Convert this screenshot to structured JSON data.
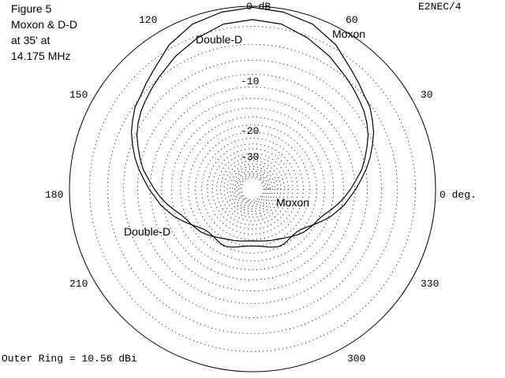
{
  "chart_data": {
    "type": "polar",
    "caption": [
      "Figure 5",
      "Moxon & D-D",
      "at 35' at",
      "14.175 MHz"
    ],
    "program_label": "E2NEC/4",
    "outer_ring_label": "Outer Ring = 10.56 dBi",
    "outer_ring_dbi": 10.56,
    "ring_labels": [
      {
        "db": 0,
        "text": "0 dB"
      },
      {
        "db": -10,
        "text": "-10"
      },
      {
        "db": -20,
        "text": "-20"
      },
      {
        "db": -30,
        "text": "-30"
      }
    ],
    "angle_labels": [
      {
        "deg": 0,
        "text": "0 deg."
      },
      {
        "deg": 30,
        "text": "30"
      },
      {
        "deg": 60,
        "text": "60"
      },
      {
        "deg": 120,
        "text": "120"
      },
      {
        "deg": 150,
        "text": "150"
      },
      {
        "deg": 180,
        "text": "180"
      },
      {
        "deg": 210,
        "text": "210"
      },
      {
        "deg": 300,
        "text": "300"
      },
      {
        "deg": 330,
        "text": "330"
      }
    ],
    "series": [
      {
        "name": "Moxon",
        "unit": "dB below outer ring",
        "points": [
          [
            90,
            -0.1
          ],
          [
            80,
            -0.3
          ],
          [
            70,
            -0.7
          ],
          [
            60,
            -1.6
          ],
          [
            50,
            -2.9
          ],
          [
            45,
            -3.4
          ],
          [
            40,
            -3.9
          ],
          [
            35,
            -4.2
          ],
          [
            30,
            -4.8
          ],
          [
            25,
            -5.4
          ],
          [
            20,
            -6.2
          ],
          [
            15,
            -7.0
          ],
          [
            10,
            -7.9
          ],
          [
            5,
            -8.9
          ],
          [
            0,
            -9.8
          ],
          [
            -5,
            -10.8
          ],
          [
            -10,
            -11.6
          ],
          [
            -15,
            -12.7
          ],
          [
            -20,
            -13.7
          ],
          [
            -25,
            -15.0
          ],
          [
            -30,
            -16.2
          ],
          [
            -35,
            -17.4
          ],
          [
            -40,
            -18.3
          ],
          [
            -45,
            -18.7
          ],
          [
            -50,
            -18.7
          ],
          [
            -55,
            -18.5
          ],
          [
            -60,
            -18.2
          ],
          [
            -65,
            -18.2
          ],
          [
            -70,
            -18.6
          ],
          [
            -75,
            -19.1
          ],
          [
            -80,
            -19.6
          ],
          [
            -85,
            -19.9
          ],
          [
            -90,
            -20.0
          ]
        ]
      },
      {
        "name": "Double-D",
        "unit": "dB below outer ring",
        "points": [
          [
            90,
            -1.3
          ],
          [
            80,
            -1.5
          ],
          [
            70,
            -2.2
          ],
          [
            60,
            -3.0
          ],
          [
            50,
            -3.9
          ],
          [
            45,
            -4.3
          ],
          [
            40,
            -4.7
          ],
          [
            35,
            -5.1
          ],
          [
            30,
            -5.6
          ],
          [
            25,
            -6.2
          ],
          [
            20,
            -7.0
          ],
          [
            15,
            -7.8
          ],
          [
            10,
            -8.6
          ],
          [
            5,
            -9.7
          ],
          [
            0,
            -10.7
          ],
          [
            -5,
            -11.7
          ],
          [
            -10,
            -12.8
          ],
          [
            -15,
            -14.0
          ],
          [
            -20,
            -15.1
          ],
          [
            -25,
            -15.9
          ],
          [
            -30,
            -16.3
          ],
          [
            -35,
            -16.8
          ],
          [
            -40,
            -17.2
          ],
          [
            -45,
            -17.9
          ],
          [
            -50,
            -18.6
          ],
          [
            -55,
            -19.3
          ],
          [
            -60,
            -19.9
          ],
          [
            -65,
            -20.4
          ],
          [
            -70,
            -20.7
          ],
          [
            -75,
            -21.0
          ],
          [
            -80,
            -21.3
          ],
          [
            -85,
            -21.5
          ],
          [
            -90,
            -21.6
          ]
        ]
      }
    ],
    "series_labels": [
      "Moxon",
      "Double-D",
      "Moxon",
      "Double-D"
    ]
  }
}
